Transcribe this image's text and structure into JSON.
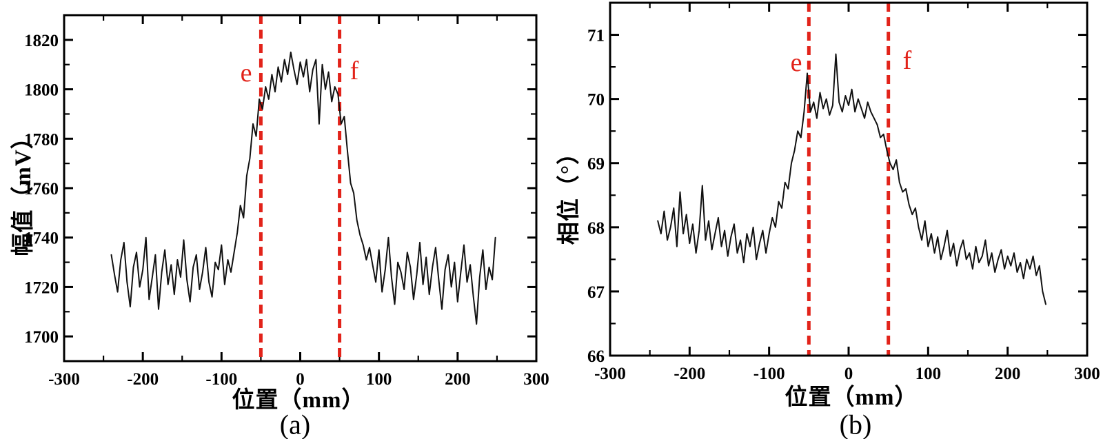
{
  "colors": {
    "axis": "#000000",
    "data_line": "#111111",
    "annotation": "#e2231a",
    "background": "#ffffff"
  },
  "chart_data": [
    {
      "type": "line",
      "title": "",
      "xlabel": "位置（mm）",
      "ylabel": "幅值（mV）",
      "caption": "(a)",
      "legend": "none",
      "grid": false,
      "xlim": [
        -300,
        300
      ],
      "ylim": [
        1690,
        1830
      ],
      "x_major_ticks": [
        -300,
        -200,
        -100,
        0,
        100,
        200,
        300
      ],
      "x_minor_step": 50,
      "y_major_ticks": [
        1700,
        1720,
        1740,
        1760,
        1780,
        1800,
        1820
      ],
      "y_minor_step": 10,
      "annotations": {
        "e_label": "e",
        "e_x": -50,
        "f_label": "f",
        "f_x": 50
      },
      "series": {
        "name": "amplitude",
        "x_start": -240,
        "x_step": 4,
        "y": [
          1733,
          1725,
          1718,
          1731,
          1738,
          1722,
          1712,
          1728,
          1734,
          1720,
          1727,
          1740,
          1715,
          1724,
          1733,
          1711,
          1726,
          1735,
          1721,
          1729,
          1717,
          1731,
          1724,
          1739,
          1723,
          1714,
          1728,
          1733,
          1719,
          1726,
          1736,
          1722,
          1716,
          1730,
          1727,
          1737,
          1721,
          1731,
          1726,
          1734,
          1742,
          1753,
          1748,
          1765,
          1772,
          1786,
          1781,
          1796,
          1792,
          1801,
          1796,
          1806,
          1799,
          1809,
          1803,
          1812,
          1806,
          1815,
          1808,
          1802,
          1811,
          1805,
          1812,
          1799,
          1808,
          1812,
          1786,
          1810,
          1800,
          1807,
          1795,
          1801,
          1798,
          1786,
          1789,
          1775,
          1762,
          1758,
          1747,
          1741,
          1737,
          1731,
          1736,
          1729,
          1722,
          1735,
          1718,
          1727,
          1740,
          1724,
          1713,
          1730,
          1726,
          1719,
          1734,
          1728,
          1715,
          1725,
          1738,
          1721,
          1732,
          1717,
          1728,
          1736,
          1723,
          1711,
          1727,
          1733,
          1720,
          1730,
          1714,
          1726,
          1737,
          1722,
          1729,
          1716,
          1705,
          1724,
          1735,
          1719,
          1728,
          1723,
          1740
        ]
      }
    },
    {
      "type": "line",
      "title": "",
      "xlabel": "位置（mm）",
      "ylabel": "相位（°）",
      "caption": "(b)",
      "legend": "none",
      "grid": false,
      "xlim": [
        -300,
        300
      ],
      "ylim": [
        66,
        71.5
      ],
      "x_major_ticks": [
        -300,
        -200,
        -100,
        0,
        100,
        200,
        300
      ],
      "x_minor_step": 50,
      "y_major_ticks": [
        66,
        67,
        68,
        69,
        70,
        71
      ],
      "y_minor_step": 0.5,
      "annotations": {
        "e_label": "e",
        "e_x": -50,
        "f_label": "f",
        "f_x": 50
      },
      "series": {
        "name": "phase",
        "x_start": -240,
        "x_step": 4,
        "y": [
          68.1,
          67.9,
          68.25,
          67.8,
          68.0,
          68.3,
          67.7,
          68.55,
          67.9,
          68.2,
          67.75,
          68.05,
          67.6,
          67.95,
          68.65,
          67.8,
          68.1,
          67.65,
          67.9,
          68.15,
          67.7,
          67.95,
          67.55,
          67.85,
          68.05,
          67.6,
          67.8,
          67.45,
          67.9,
          67.7,
          68.0,
          67.5,
          67.75,
          67.95,
          67.6,
          67.9,
          68.15,
          68.0,
          68.4,
          68.3,
          68.7,
          68.6,
          69.0,
          69.2,
          69.5,
          69.4,
          69.8,
          70.4,
          69.8,
          69.95,
          69.7,
          70.1,
          69.85,
          70.0,
          69.75,
          69.9,
          70.7,
          69.95,
          69.8,
          70.05,
          69.9,
          70.15,
          69.8,
          70.0,
          69.85,
          69.7,
          69.95,
          69.8,
          69.7,
          69.6,
          69.4,
          69.45,
          69.2,
          69.0,
          68.9,
          69.05,
          68.7,
          68.55,
          68.6,
          68.35,
          68.2,
          68.3,
          68.0,
          67.8,
          68.1,
          67.7,
          67.9,
          67.6,
          67.85,
          67.5,
          67.7,
          67.95,
          67.55,
          67.75,
          67.4,
          67.65,
          67.8,
          67.5,
          67.6,
          67.35,
          67.7,
          67.45,
          67.55,
          67.8,
          67.4,
          67.6,
          67.3,
          67.5,
          67.65,
          67.35,
          67.55,
          67.4,
          67.6,
          67.3,
          67.45,
          67.2,
          67.5,
          67.35,
          67.55,
          67.25,
          67.4,
          67.0,
          66.8
        ]
      }
    }
  ]
}
